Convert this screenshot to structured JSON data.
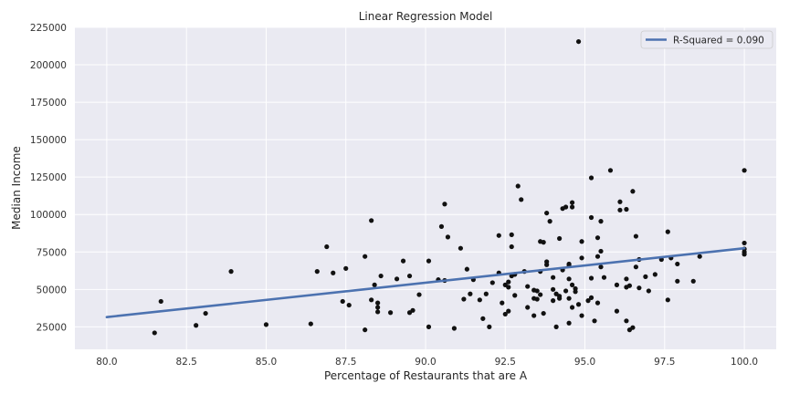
{
  "chart_data": {
    "type": "scatter",
    "title": "Linear Regression Model",
    "xlabel": "Percentage of Restaurants that are A",
    "ylabel": "Median Income",
    "xlim": [
      79.0,
      101.0
    ],
    "ylim": [
      10000,
      225000
    ],
    "x_ticks": [
      80.0,
      82.5,
      85.0,
      87.5,
      90.0,
      92.5,
      95.0,
      97.5,
      100.0
    ],
    "x_tick_labels": [
      "80.0",
      "82.5",
      "85.0",
      "87.5",
      "90.0",
      "92.5",
      "95.0",
      "97.5",
      "100.0"
    ],
    "y_ticks": [
      25000,
      50000,
      75000,
      100000,
      125000,
      150000,
      175000,
      200000,
      225000
    ],
    "y_tick_labels": [
      "25000",
      "50000",
      "75000",
      "100000",
      "125000",
      "150000",
      "175000",
      "200000",
      "225000"
    ],
    "grid": true,
    "background_color": "#EAEAF2",
    "point_color": "#111111",
    "line_color": "#4C72B0",
    "legend": {
      "position": "top-right",
      "entries": [
        "R-Squared = 0.090"
      ]
    },
    "regression_line": {
      "x": [
        80.0,
        100.0
      ],
      "y": [
        31500,
        77500
      ]
    },
    "points": [
      [
        81.5,
        21000
      ],
      [
        81.7,
        42000
      ],
      [
        82.8,
        26000
      ],
      [
        83.1,
        34000
      ],
      [
        83.9,
        62000
      ],
      [
        85.0,
        26500
      ],
      [
        86.4,
        27000
      ],
      [
        86.6,
        62000
      ],
      [
        86.9,
        78500
      ],
      [
        87.1,
        61000
      ],
      [
        87.4,
        42000
      ],
      [
        87.5,
        64000
      ],
      [
        87.6,
        39500
      ],
      [
        88.1,
        72000
      ],
      [
        88.1,
        23000
      ],
      [
        88.3,
        43000
      ],
      [
        88.3,
        96000
      ],
      [
        88.4,
        53000
      ],
      [
        88.5,
        41000
      ],
      [
        88.5,
        38000
      ],
      [
        88.5,
        35000
      ],
      [
        88.6,
        59000
      ],
      [
        88.9,
        34500
      ],
      [
        89.1,
        57000
      ],
      [
        89.3,
        69000
      ],
      [
        89.5,
        59000
      ],
      [
        89.5,
        34500
      ],
      [
        89.6,
        36000
      ],
      [
        89.8,
        46500
      ],
      [
        90.1,
        69000
      ],
      [
        90.1,
        25000
      ],
      [
        90.4,
        56500
      ],
      [
        90.5,
        92000
      ],
      [
        90.6,
        107000
      ],
      [
        90.6,
        56000
      ],
      [
        90.7,
        85000
      ],
      [
        90.9,
        24000
      ],
      [
        91.1,
        77500
      ],
      [
        91.2,
        43500
      ],
      [
        91.3,
        63500
      ],
      [
        91.4,
        47000
      ],
      [
        91.5,
        56500
      ],
      [
        91.7,
        43000
      ],
      [
        91.8,
        30500
      ],
      [
        91.9,
        47000
      ],
      [
        92.0,
        25000
      ],
      [
        92.1,
        54500
      ],
      [
        92.3,
        86000
      ],
      [
        92.3,
        61000
      ],
      [
        92.4,
        41000
      ],
      [
        92.5,
        53000
      ],
      [
        92.5,
        33500
      ],
      [
        92.6,
        55000
      ],
      [
        92.6,
        51500
      ],
      [
        92.6,
        35500
      ],
      [
        92.7,
        78500
      ],
      [
        92.7,
        86500
      ],
      [
        92.7,
        59000
      ],
      [
        92.8,
        60000
      ],
      [
        92.8,
        46000
      ],
      [
        92.9,
        119000
      ],
      [
        93.0,
        110000
      ],
      [
        93.1,
        62000
      ],
      [
        93.2,
        52000
      ],
      [
        93.2,
        38000
      ],
      [
        93.4,
        49500
      ],
      [
        93.4,
        44000
      ],
      [
        93.4,
        32500
      ],
      [
        93.5,
        43500
      ],
      [
        93.5,
        49000
      ],
      [
        93.6,
        62000
      ],
      [
        93.6,
        46500
      ],
      [
        93.6,
        82000
      ],
      [
        93.7,
        81500
      ],
      [
        93.7,
        34000
      ],
      [
        93.8,
        101000
      ],
      [
        93.8,
        68500
      ],
      [
        93.8,
        66500
      ],
      [
        93.9,
        95500
      ],
      [
        94.0,
        58000
      ],
      [
        94.0,
        50000
      ],
      [
        94.0,
        42500
      ],
      [
        94.1,
        25000
      ],
      [
        94.1,
        47000
      ],
      [
        94.2,
        45500
      ],
      [
        94.2,
        44000
      ],
      [
        94.2,
        84000
      ],
      [
        94.3,
        63000
      ],
      [
        94.3,
        104000
      ],
      [
        94.4,
        105000
      ],
      [
        94.4,
        49000
      ],
      [
        94.5,
        66000
      ],
      [
        94.5,
        67000
      ],
      [
        94.5,
        57000
      ],
      [
        94.5,
        44000
      ],
      [
        94.5,
        27500
      ],
      [
        94.6,
        108000
      ],
      [
        94.6,
        105000
      ],
      [
        94.6,
        53000
      ],
      [
        94.6,
        38000
      ],
      [
        94.7,
        48500
      ],
      [
        94.7,
        50500
      ],
      [
        94.8,
        215500
      ],
      [
        94.8,
        40000
      ],
      [
        94.9,
        82000
      ],
      [
        94.9,
        71000
      ],
      [
        94.9,
        32500
      ],
      [
        95.1,
        42500
      ],
      [
        95.2,
        124500
      ],
      [
        95.2,
        98000
      ],
      [
        95.2,
        57500
      ],
      [
        95.2,
        44500
      ],
      [
        95.3,
        29000
      ],
      [
        95.4,
        41000
      ],
      [
        95.4,
        84500
      ],
      [
        95.4,
        72000
      ],
      [
        95.5,
        95500
      ],
      [
        95.5,
        75500
      ],
      [
        95.5,
        65000
      ],
      [
        95.6,
        58000
      ],
      [
        95.8,
        129500
      ],
      [
        96.0,
        53000
      ],
      [
        96.0,
        35500
      ],
      [
        96.1,
        108500
      ],
      [
        96.1,
        103000
      ],
      [
        96.3,
        103500
      ],
      [
        96.3,
        57000
      ],
      [
        96.3,
        51500
      ],
      [
        96.3,
        29000
      ],
      [
        96.4,
        52500
      ],
      [
        96.4,
        23000
      ],
      [
        96.5,
        115500
      ],
      [
        96.5,
        24500
      ],
      [
        96.6,
        85500
      ],
      [
        96.6,
        65000
      ],
      [
        96.7,
        70000
      ],
      [
        96.7,
        51000
      ],
      [
        96.9,
        58500
      ],
      [
        97.0,
        49000
      ],
      [
        97.2,
        60000
      ],
      [
        97.4,
        70000
      ],
      [
        97.6,
        88500
      ],
      [
        97.6,
        43000
      ],
      [
        97.7,
        71000
      ],
      [
        97.9,
        55500
      ],
      [
        97.9,
        67000
      ],
      [
        98.4,
        55500
      ],
      [
        98.6,
        72000
      ],
      [
        100.0,
        129500
      ],
      [
        100.0,
        81000
      ],
      [
        100.0,
        77000
      ],
      [
        100.0,
        75000
      ],
      [
        100.0,
        73500
      ]
    ]
  }
}
